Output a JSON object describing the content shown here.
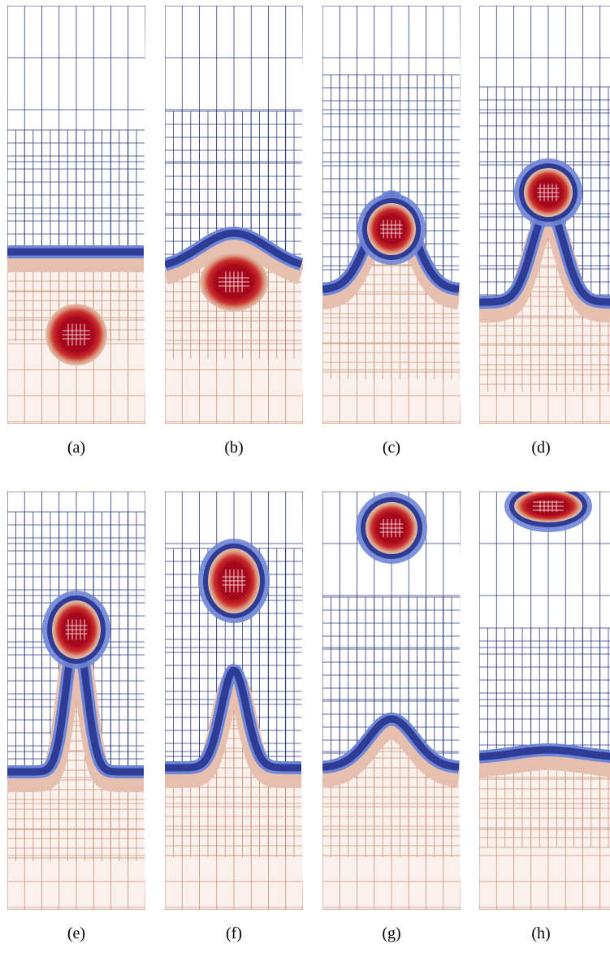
{
  "figure": {
    "panels": [
      {
        "id": "a",
        "caption": "(a)"
      },
      {
        "id": "b",
        "caption": "(b)"
      },
      {
        "id": "c",
        "caption": "(c)"
      },
      {
        "id": "d",
        "caption": "(d)"
      },
      {
        "id": "e",
        "caption": "(e)"
      },
      {
        "id": "f",
        "caption": "(f)"
      },
      {
        "id": "g",
        "caption": "(g)"
      },
      {
        "id": "h",
        "caption": "(h)"
      }
    ],
    "colors": {
      "mesh_upper": "#2b3a80",
      "mesh_lower": "#c8907a",
      "band_dark": "#2e3c96",
      "band_light": "#6f86d6",
      "liquid_light": "#e7bfae",
      "liquid_mid": "#d99d84",
      "droplet_core": "#a5081c",
      "droplet_mid": "#cc2c2a",
      "background": "#ffffff"
    }
  }
}
